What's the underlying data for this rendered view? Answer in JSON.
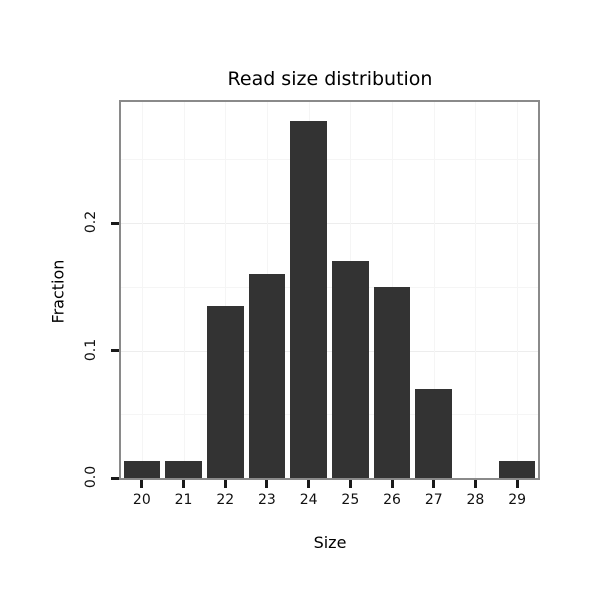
{
  "chart_data": {
    "type": "bar",
    "title": "Read size distribution",
    "xlabel": "Size",
    "ylabel": "Fraction",
    "categories": [
      "20",
      "21",
      "22",
      "23",
      "24",
      "25",
      "26",
      "27",
      "28",
      "29"
    ],
    "values": [
      0.013,
      0.013,
      0.135,
      0.16,
      0.28,
      0.17,
      0.15,
      0.07,
      0.0,
      0.013
    ],
    "y_ticks": [
      0.0,
      0.1,
      0.2
    ],
    "y_tick_labels": [
      "0.0",
      "0.1",
      "0.2"
    ],
    "ylim": [
      0,
      0.295
    ],
    "grid": "on",
    "legend": "none",
    "bar_color": "#333333",
    "panel_border_color": "#8a8a8a",
    "grid_major_color": "#ededed",
    "grid_minor_color": "#f5f5f5"
  }
}
